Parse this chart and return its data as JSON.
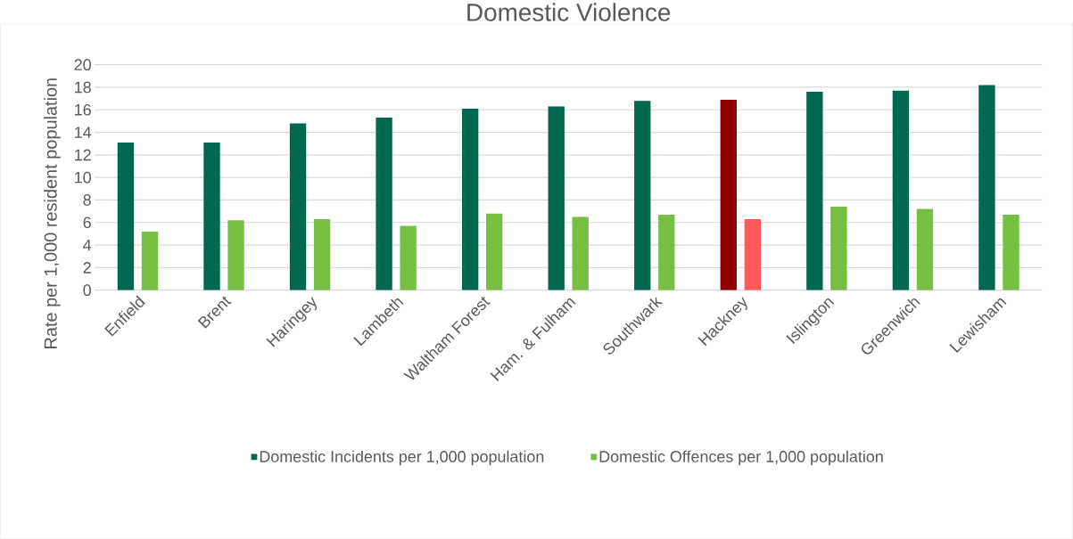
{
  "chart_data": {
    "type": "bar",
    "title": "Domestic Violence",
    "ylabel": "Rate per 1,000 resident population",
    "categories": [
      "Enfield",
      "Brent",
      "Haringey",
      "Lambeth",
      "Waltham Forest",
      "Ham. & Fulham",
      "Southwark",
      "Hackney",
      "Islington",
      "Greenwich",
      "Lewisham"
    ],
    "series": [
      {
        "name": "Domestic Incidents per 1,000 population",
        "color": "#00684f",
        "colors": [
          "#00684f",
          "#00684f",
          "#00684f",
          "#00684f",
          "#00684f",
          "#00684f",
          "#00684f",
          "#900000",
          "#00684f",
          "#00684f",
          "#00684f"
        ],
        "values": [
          13.1,
          13.1,
          14.8,
          15.3,
          16.1,
          16.3,
          16.8,
          16.9,
          17.6,
          17.7,
          18.2
        ]
      },
      {
        "name": "Domestic Offences per 1,000 population",
        "color": "#76bf43",
        "colors": [
          "#76bf43",
          "#76bf43",
          "#76bf43",
          "#76bf43",
          "#76bf43",
          "#76bf43",
          "#76bf43",
          "#ff5a5a",
          "#76bf43",
          "#76bf43",
          "#76bf43"
        ],
        "values": [
          5.2,
          6.2,
          6.3,
          5.7,
          6.8,
          6.5,
          6.7,
          6.3,
          7.4,
          7.2,
          6.7
        ]
      }
    ],
    "ylim": [
      0,
      20
    ],
    "yticks": [
      0,
      2,
      4,
      6,
      8,
      10,
      12,
      14,
      16,
      18,
      20
    ],
    "grid": "y",
    "legend": "bottom"
  }
}
